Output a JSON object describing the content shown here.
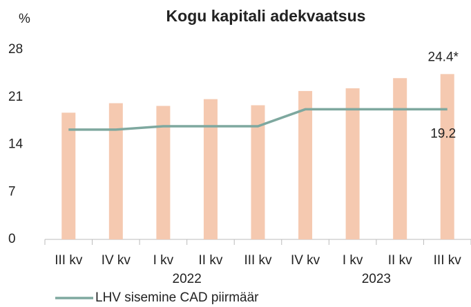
{
  "chart_data": {
    "type": "bar+line",
    "title": "Kogu kapitali adekvaatsus",
    "y_label": "%",
    "categories": [
      "III kv",
      "IV kv",
      "I kv",
      "II kv",
      "III kv",
      "IV kv",
      "I kv",
      "II kv",
      "III kv"
    ],
    "groups": [
      {
        "label": "2022",
        "from": 2,
        "to": 3
      },
      {
        "label": "2023",
        "from": 6,
        "to": 7
      }
    ],
    "series": [
      {
        "type": "bar",
        "color": "#f5c9b0",
        "values": [
          18.7,
          20.1,
          19.7,
          20.7,
          19.8,
          21.9,
          22.3,
          23.8,
          24.4
        ],
        "value_labels": [
          null,
          null,
          null,
          null,
          null,
          null,
          null,
          null,
          "24.4*"
        ]
      },
      {
        "type": "line",
        "name": "LHV sisemine CAD piirmäär",
        "color": "#7ea89f",
        "values": [
          16.2,
          16.2,
          16.7,
          16.7,
          16.7,
          19.2,
          19.2,
          19.2,
          19.2
        ],
        "value_labels": [
          null,
          null,
          null,
          null,
          null,
          null,
          null,
          null,
          "19.2"
        ]
      }
    ],
    "ylim": [
      0,
      28
    ],
    "yticks": [
      0,
      7,
      14,
      21,
      28
    ]
  }
}
